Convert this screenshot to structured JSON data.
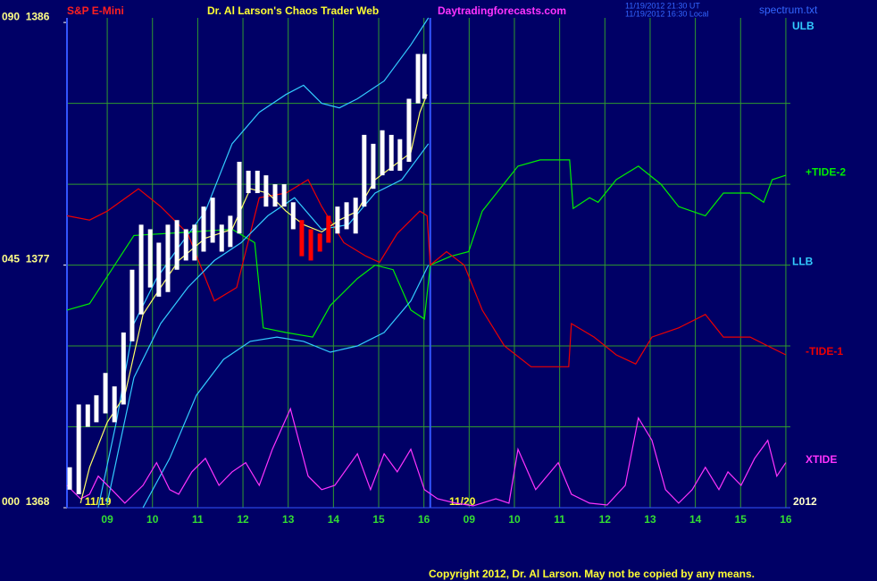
{
  "chart_data": {
    "type": "line",
    "title": "Dr. Al Larson's Chaos Trader Web",
    "symbol": "S&P E-Mini",
    "site": "Daytradingforecasts.com",
    "stamp_ut": "11/19/2012 21:30 UT",
    "stamp_local": "11/19/2012 16:30 Local",
    "file": "spectrum.txt",
    "copyright": "Copyright 2012, Dr. Al Larson. May not be copied by any means.",
    "annotations": [
      {
        "text": "11/19"
      },
      {
        "text": "11/20"
      },
      {
        "text": "2012"
      }
    ],
    "xlim": [
      0.11,
      16.1
    ],
    "ylim": [
      1368,
      1386.17
    ],
    "xticks": [
      {
        "value": 1,
        "label": "09"
      },
      {
        "value": 2,
        "label": "10"
      },
      {
        "value": 3,
        "label": "11"
      },
      {
        "value": 4,
        "label": "12"
      },
      {
        "value": 5,
        "label": "13"
      },
      {
        "value": 6,
        "label": "14"
      },
      {
        "value": 7,
        "label": "15"
      },
      {
        "value": 8,
        "label": "16"
      },
      {
        "value": 9,
        "label": "09"
      },
      {
        "value": 10,
        "label": "10"
      },
      {
        "value": 11,
        "label": "11"
      },
      {
        "value": 12,
        "label": "12"
      },
      {
        "value": 13,
        "label": "13"
      },
      {
        "value": 14,
        "label": "14"
      },
      {
        "value": 15,
        "label": "15"
      },
      {
        "value": 16,
        "label": "16"
      }
    ],
    "yticks": [
      {
        "value": 1386,
        "label": "090  1386"
      },
      {
        "value": 1377,
        "label": "045  1377"
      },
      {
        "value": 1368,
        "label": "000  1368"
      }
    ],
    "ygrid": [
      1371,
      1374,
      1377,
      1380,
      1383
    ],
    "grid": true,
    "now_x": 8.14,
    "price_bars": {
      "x": [
        0.17,
        0.37,
        0.57,
        0.76,
        0.96,
        1.16,
        1.36,
        1.55,
        1.75,
        1.95,
        2.14,
        2.34,
        2.54,
        2.74,
        2.93,
        3.13,
        3.33,
        3.53,
        3.72,
        3.92,
        4.12,
        4.32,
        4.51,
        4.71,
        4.91,
        5.11,
        5.3,
        5.5,
        5.7,
        5.89,
        6.09,
        6.29,
        6.49,
        6.68,
        6.88,
        7.08,
        7.28,
        7.47,
        7.67,
        7.87,
        8.01
      ],
      "high": [
        1369.5,
        1371.83,
        1371.83,
        1372.17,
        1373,
        1372.5,
        1374.5,
        1376.83,
        1378.5,
        1378.33,
        1377.83,
        1378.5,
        1378.67,
        1378.33,
        1378.5,
        1379.17,
        1379.5,
        1378.5,
        1378.83,
        1380.83,
        1380.5,
        1380.5,
        1380.33,
        1380,
        1380,
        1379.33,
        1378.67,
        1378.33,
        1378.17,
        1378.83,
        1379.17,
        1379.33,
        1379.5,
        1381.83,
        1381.5,
        1382,
        1381.83,
        1381.67,
        1383.17,
        1384.83,
        1384.83
      ],
      "low": [
        1368.67,
        1368.5,
        1371,
        1371.17,
        1371.5,
        1371.17,
        1371.83,
        1374.17,
        1375.17,
        1376.17,
        1375.83,
        1376,
        1376.83,
        1377.17,
        1377.17,
        1377.5,
        1377.83,
        1377.5,
        1377.67,
        1378.17,
        1379.67,
        1379.67,
        1379.17,
        1379.17,
        1379.17,
        1378.33,
        1377.33,
        1377.17,
        1377.5,
        1377.83,
        1378.17,
        1378.33,
        1378.17,
        1379.17,
        1379.83,
        1380.33,
        1380.5,
        1380.5,
        1380.83,
        1383,
        1383.17
      ],
      "colors": [
        "#ffffff",
        "#ffffff",
        "#ffffff",
        "#ffffff",
        "#ffffff",
        "#ffffff",
        "#ffffff",
        "#ffffff",
        "#ffffff",
        "#ffffff",
        "#ffffff",
        "#ffffff",
        "#ffffff",
        "#ffffff",
        "#ffffff",
        "#ffffff",
        "#ffffff",
        "#ffffff",
        "#ffffff",
        "#ffffff",
        "#ffffff",
        "#ffffff",
        "#ffffff",
        "#ffffff",
        "#ffffff",
        "#ffffff",
        "#ff0000",
        "#ff0000",
        "#ff0000",
        "#ff0000",
        "#ffffff",
        "#ffffff",
        "#ffffff",
        "#ffffff",
        "#ffffff",
        "#ffffff",
        "#ffffff",
        "#ffffff",
        "#ffffff",
        "#ffffff",
        "#ffffff"
      ]
    },
    "series": [
      {
        "name": "ULB",
        "color": "#33ccff",
        "x": [
          0.8,
          1.2,
          1.59,
          2.09,
          2.58,
          3.17,
          3.76,
          4.36,
          4.95,
          5.34,
          5.74,
          6.13,
          6.53,
          7.12,
          7.71,
          8.1
        ],
        "values": [
          1368,
          1371.17,
          1374.83,
          1376.5,
          1377.67,
          1379,
          1381.5,
          1382.67,
          1383.33,
          1383.67,
          1383,
          1382.83,
          1383.17,
          1383.83,
          1385.17,
          1386.17
        ]
      },
      {
        "name": "+TIDE-2",
        "color": "#00ee00",
        "x": [
          0.11,
          0.61,
          1.59,
          2.58,
          3.76,
          4.26,
          4.45,
          4.95,
          5.54,
          5.93,
          6.53,
          6.92,
          7.32,
          7.71,
          8.01,
          8.14,
          8.6,
          8.99,
          9.29,
          9.68,
          10.08,
          10.57,
          11.22,
          11.3,
          11.66,
          11.85,
          12.25,
          12.74,
          13.24,
          13.63,
          14.22,
          14.62,
          15.21,
          15.51,
          15.7,
          16.0
        ],
        "values": [
          1375.33,
          1375.57,
          1378.1,
          1378.2,
          1378.33,
          1377.83,
          1374.67,
          1374.5,
          1374.33,
          1375.5,
          1376.5,
          1377,
          1376.83,
          1375.33,
          1375,
          1377,
          1377.33,
          1377.5,
          1379,
          1379.83,
          1380.67,
          1380.9,
          1380.9,
          1379.1,
          1379.5,
          1379.33,
          1380.17,
          1380.67,
          1380,
          1379.17,
          1378.83,
          1379.67,
          1379.67,
          1379.33,
          1380.17,
          1380.33
        ]
      },
      {
        "name": "LLB",
        "color": "#33ccff",
        "x": [
          1.79,
          2.38,
          2.97,
          3.57,
          4.16,
          4.75,
          5.34,
          5.93,
          6.53,
          7.12,
          7.71,
          8.1
        ],
        "values": [
          1368,
          1369.83,
          1372.17,
          1373.5,
          1374.17,
          1374.33,
          1374.17,
          1373.77,
          1374,
          1374.5,
          1375.67,
          1377
        ]
      },
      {
        "name": "-TIDE-1",
        "color": "#ee0000",
        "x": [
          0.11,
          0.61,
          1,
          1.69,
          2.18,
          2.78,
          3.37,
          3.86,
          4.36,
          4.95,
          5.44,
          5.74,
          6.23,
          6.72,
          7.02,
          7.41,
          7.91,
          8.07,
          8.14,
          8.5,
          8.89,
          9.29,
          9.78,
          10.37,
          11.2,
          11.26,
          11.76,
          12.25,
          12.68,
          13.04,
          13.63,
          14.22,
          14.62,
          15.21,
          15.6,
          16.0
        ],
        "values": [
          1378.83,
          1378.67,
          1379,
          1379.83,
          1379.17,
          1378.17,
          1375.67,
          1376.17,
          1379.5,
          1379.67,
          1380.17,
          1379.17,
          1377.83,
          1377.33,
          1377.1,
          1378.17,
          1379,
          1378.83,
          1377,
          1377.5,
          1377,
          1375.33,
          1374,
          1373.23,
          1373.23,
          1374.83,
          1374.33,
          1373.67,
          1373.33,
          1374.33,
          1374.67,
          1375.17,
          1374.33,
          1374.33,
          1374,
          1373.67
        ]
      },
      {
        "name": "XTIDE",
        "color": "#ff33ff",
        "x": [
          0.11,
          0.41,
          0.61,
          0.8,
          1.1,
          1.39,
          1.79,
          2.09,
          2.38,
          2.58,
          2.87,
          3.17,
          3.47,
          3.76,
          4.06,
          4.36,
          4.65,
          5.05,
          5.44,
          5.74,
          6.03,
          6.53,
          6.82,
          7.12,
          7.41,
          7.71,
          8.01,
          8.3,
          8.7,
          9.09,
          9.59,
          9.88,
          10.08,
          10.47,
          10.97,
          11.26,
          11.66,
          12.05,
          12.45,
          12.74,
          13.04,
          13.34,
          13.63,
          13.93,
          14.22,
          14.52,
          14.72,
          15.01,
          15.31,
          15.6,
          15.8,
          16.0
        ],
        "values": [
          1368.83,
          1368.33,
          1368.5,
          1369.17,
          1368.67,
          1368.17,
          1368.83,
          1369.67,
          1368.67,
          1368.5,
          1369.33,
          1369.83,
          1368.83,
          1369.33,
          1369.67,
          1368.83,
          1370.17,
          1371.67,
          1369.17,
          1368.67,
          1368.83,
          1370,
          1368.67,
          1370,
          1369.33,
          1370.17,
          1368.67,
          1368.33,
          1368.17,
          1368.07,
          1368.33,
          1368.17,
          1370.17,
          1368.67,
          1369.67,
          1368.5,
          1368.17,
          1368.1,
          1368.83,
          1371.33,
          1370.5,
          1368.67,
          1368.17,
          1368.67,
          1369.5,
          1368.67,
          1369.33,
          1368.83,
          1369.83,
          1370.5,
          1369.17,
          1369.67
        ]
      },
      {
        "color": "#33ccff",
        "x": [
          1,
          1.59,
          2.18,
          2.78,
          3.37,
          3.96,
          4.55,
          5.14,
          5.74,
          6.33,
          6.92,
          7.51,
          8.1
        ],
        "values": [
          1368.17,
          1372.83,
          1374.83,
          1376.17,
          1377.17,
          1377.83,
          1378.83,
          1379.5,
          1378.33,
          1378.5,
          1379.67,
          1380.17,
          1381.5
        ]
      },
      {
        "color": "#ffff66",
        "x": [
          0.41,
          0.61,
          1,
          1.39,
          1.79,
          2.18,
          2.58,
          3.17,
          3.76,
          4.16,
          4.55,
          4.95,
          5.34,
          5.74,
          6.13,
          6.53,
          6.92,
          7.32,
          7.71,
          7.91,
          8.07
        ],
        "values": [
          1368.17,
          1369.5,
          1371.17,
          1372.17,
          1375.17,
          1376.17,
          1377.17,
          1378,
          1378.33,
          1379.83,
          1379.67,
          1379,
          1378.5,
          1378.23,
          1378.67,
          1379,
          1380.17,
          1380.67,
          1381.17,
          1382.67,
          1383.33
        ]
      }
    ]
  }
}
